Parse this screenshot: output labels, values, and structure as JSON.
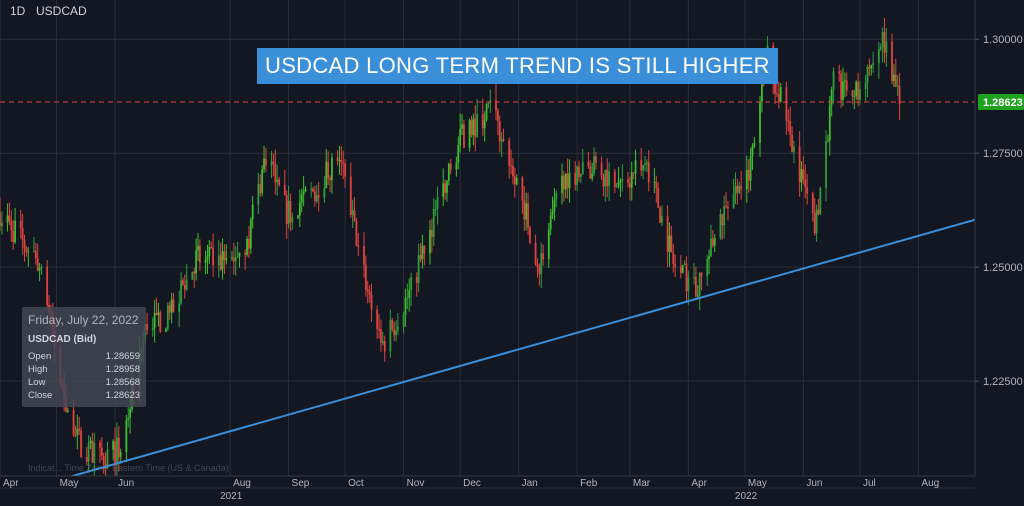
{
  "header": {
    "interval": "1D",
    "symbol": "USDCAD"
  },
  "title_banner": {
    "text": "USDCAD LONG TERM TREND IS STILL HIGHER",
    "background": "#3a8fd8"
  },
  "info_box": {
    "date": "Friday, July 22, 2022",
    "symbol": "USDCAD (Bid)",
    "rows": [
      {
        "label": "Open",
        "value": "1.28659"
      },
      {
        "label": "High",
        "value": "1.28958"
      },
      {
        "label": "Low",
        "value": "1.28568"
      },
      {
        "label": "Close",
        "value": "1.28623"
      }
    ]
  },
  "footnote": "Indicat...  Time Zone: Eastern Time (US & Canada)",
  "colors": {
    "background": "#131722",
    "up_candle": "#26a69a",
    "up_candle_bright": "#3fbf2f",
    "down_candle": "#e0443e",
    "trendline": "#3a8fd8",
    "price_line": "#e0443e",
    "price_label_bg": "#1fa31f",
    "grid": "#2a2e39",
    "axis_text": "#b2b5be"
  },
  "chart_data": {
    "type": "candlestick",
    "title": "USDCAD LONG TERM TREND IS STILL HIGHER",
    "x_range": [
      "2021-04-01",
      "2022-08-31"
    ],
    "y_range": [
      1.2042,
      1.3086
    ],
    "y_ticks": [
      "1.30000",
      "1.27500",
      "1.25000",
      "1.22500"
    ],
    "month_ticks": [
      {
        "date": "2021-04-01",
        "label": "Apr"
      },
      {
        "date": "2021-05-01",
        "label": "May"
      },
      {
        "date": "2021-06-01",
        "label": "Jun"
      },
      {
        "date": "2021-08-01",
        "label": "Aug"
      },
      {
        "date": "2021-09-01",
        "label": "Sep"
      },
      {
        "date": "2021-10-01",
        "label": "Oct"
      },
      {
        "date": "2021-11-01",
        "label": "Nov"
      },
      {
        "date": "2021-12-01",
        "label": "Dec"
      },
      {
        "date": "2022-01-01",
        "label": "Jan"
      },
      {
        "date": "2022-02-01",
        "label": "Feb"
      },
      {
        "date": "2022-03-01",
        "label": "Mar"
      },
      {
        "date": "2022-04-01",
        "label": "Apr"
      },
      {
        "date": "2022-05-01",
        "label": "May"
      },
      {
        "date": "2022-06-01",
        "label": "Jun"
      },
      {
        "date": "2022-07-01",
        "label": "Jul"
      },
      {
        "date": "2022-08-01",
        "label": "Aug"
      }
    ],
    "year_ticks": [
      {
        "date": "2021-08-01",
        "label": "2021"
      },
      {
        "date": "2022-05-01",
        "label": "2022"
      }
    ],
    "last_price": {
      "value": 1.28623,
      "label": "1.28623"
    },
    "trendline": [
      {
        "date": "2021-04-25",
        "value": 1.2025
      },
      {
        "date": "2022-08-31",
        "value": 1.2604
      }
    ],
    "close_path": [
      [
        "2021-04-01",
        1.262
      ],
      [
        "2021-04-12",
        1.256
      ],
      [
        "2021-04-23",
        1.25
      ],
      [
        "2021-05-03",
        1.225
      ],
      [
        "2021-05-12",
        1.212
      ],
      [
        "2021-05-24",
        1.208
      ],
      [
        "2021-06-04",
        1.21
      ],
      [
        "2021-06-18",
        1.238
      ],
      [
        "2021-06-30",
        1.239
      ],
      [
        "2021-07-14",
        1.252
      ],
      [
        "2021-07-28",
        1.251
      ],
      [
        "2021-08-10",
        1.255
      ],
      [
        "2021-08-20",
        1.275
      ],
      [
        "2021-08-31",
        1.262
      ],
      [
        "2021-09-15",
        1.267
      ],
      [
        "2021-09-28",
        1.275
      ],
      [
        "2021-10-10",
        1.25
      ],
      [
        "2021-10-21",
        1.233
      ],
      [
        "2021-11-05",
        1.245
      ],
      [
        "2021-11-18",
        1.262
      ],
      [
        "2021-12-01",
        1.278
      ],
      [
        "2021-12-17",
        1.285
      ],
      [
        "2021-12-31",
        1.27
      ],
      [
        "2022-01-12",
        1.25
      ],
      [
        "2022-01-25",
        1.27
      ],
      [
        "2022-02-10",
        1.272
      ],
      [
        "2022-02-25",
        1.268
      ],
      [
        "2022-03-10",
        1.273
      ],
      [
        "2022-03-25",
        1.25
      ],
      [
        "2022-04-06",
        1.245
      ],
      [
        "2022-04-20",
        1.262
      ],
      [
        "2022-05-03",
        1.27
      ],
      [
        "2022-05-12",
        1.297
      ],
      [
        "2022-05-25",
        1.28
      ],
      [
        "2022-06-07",
        1.258
      ],
      [
        "2022-06-17",
        1.29
      ],
      [
        "2022-07-01",
        1.288
      ],
      [
        "2022-07-13",
        1.3
      ],
      [
        "2022-07-22",
        1.2862
      ]
    ]
  }
}
